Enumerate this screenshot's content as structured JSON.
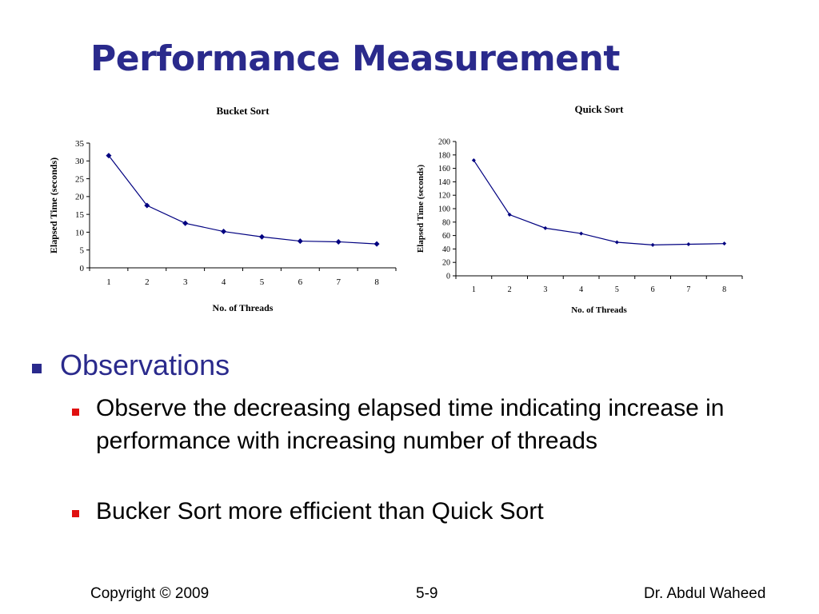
{
  "slide": {
    "title": "Performance Measurement",
    "footer": {
      "left": "Copyright © 2009",
      "center": "5-9",
      "right": "Dr. Abdul Waheed"
    },
    "bullets": {
      "level1": "Observations",
      "level2": [
        "Observe the decreasing elapsed time indicating increase in performance with increasing number of threads",
        "Bucker Sort more efficient than Quick Sort"
      ]
    },
    "colors": {
      "title": "#2a2a8c",
      "bullet_l1": "#2a2a8c",
      "bullet_l2": "#e01010",
      "series": "#000080"
    }
  },
  "chart_data": [
    {
      "type": "line",
      "title": "Bucket Sort",
      "xlabel": "No. of Threads",
      "ylabel": "Elapsed Time (seconds)",
      "categories": [
        "1",
        "2",
        "3",
        "4",
        "5",
        "6",
        "7",
        "8"
      ],
      "values": [
        31.5,
        17.5,
        12.5,
        10.2,
        8.7,
        7.5,
        7.3,
        6.7
      ],
      "ylim": [
        0,
        35
      ],
      "yticks": [
        "0",
        "5",
        "10",
        "15",
        "20",
        "25",
        "30",
        "35"
      ],
      "grid": false,
      "legend": "none"
    },
    {
      "type": "line",
      "title": "Quick Sort",
      "xlabel": "No. of Threads",
      "ylabel": "Elapsed Time (seconds)",
      "categories": [
        "1",
        "2",
        "3",
        "4",
        "5",
        "6",
        "7",
        "8"
      ],
      "values": [
        172,
        91,
        71,
        63,
        50,
        46,
        47,
        48
      ],
      "ylim": [
        0,
        200
      ],
      "yticks": [
        "0",
        "20",
        "40",
        "60",
        "80",
        "100",
        "120",
        "140",
        "160",
        "180",
        "200"
      ],
      "grid": false,
      "legend": "none"
    }
  ]
}
